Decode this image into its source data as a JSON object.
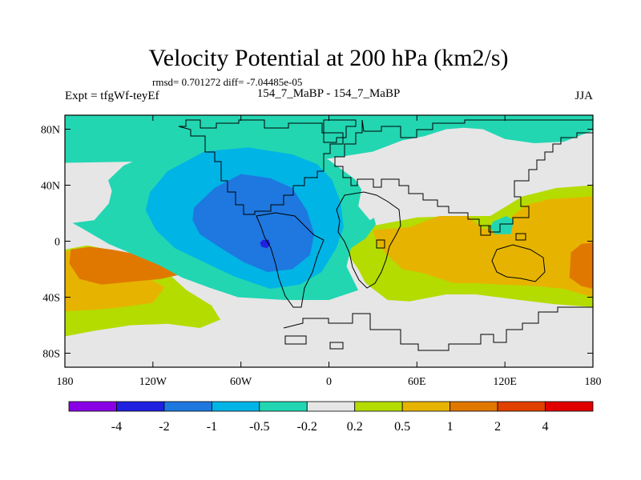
{
  "chart_data": {
    "type": "heatmap",
    "title": "Velocity Potential at 200 hPa (km2/s)",
    "subtitle": "rmsd= 0.701272 diff= -7.04485e-05",
    "left_label": "Expt = tfgWf-teyEf",
    "center_label": "154_7_MaBP - 154_7_MaBP",
    "right_label": "JJA",
    "xlim": [
      -180,
      180
    ],
    "ylim": [
      -90,
      90
    ],
    "x_ticks": [
      {
        "value": -180,
        "label": "180"
      },
      {
        "value": -120,
        "label": "120W"
      },
      {
        "value": -60,
        "label": "60W"
      },
      {
        "value": 0,
        "label": "0"
      },
      {
        "value": 60,
        "label": "60E"
      },
      {
        "value": 120,
        "label": "120E"
      },
      {
        "value": 180,
        "label": "180"
      }
    ],
    "y_ticks": [
      {
        "value": 80,
        "label": "80N"
      },
      {
        "value": 40,
        "label": "40N"
      },
      {
        "value": 0,
        "label": "0"
      },
      {
        "value": -40,
        "label": "40S"
      },
      {
        "value": -80,
        "label": "80S"
      }
    ],
    "contour_levels": [
      -4,
      -2,
      -1,
      -0.5,
      -0.2,
      0.2,
      0.5,
      1,
      2,
      4
    ],
    "colorbar_labels": [
      "-4",
      "-2",
      "-1",
      "-0.5",
      "-0.2",
      "0.2",
      "0.5",
      "1",
      "2",
      "4"
    ],
    "colorbar_colors": [
      "#8a00e6",
      "#2020e0",
      "#1e78e0",
      "#00b4e6",
      "#22d6b2",
      "#e6e6e6",
      "#b4dc00",
      "#e6b400",
      "#e07800",
      "#e04000",
      "#e00000"
    ],
    "regions": [
      {
        "name": "southern-gray",
        "level": "-0.2 to 0.2",
        "polygon": [
          [
            -127,
            -26
          ],
          [
            -105,
            -31
          ],
          [
            -83,
            -36
          ],
          [
            -68,
            -40
          ],
          [
            -60,
            -48
          ],
          [
            -55,
            -58
          ],
          [
            -57,
            -66
          ],
          [
            -45,
            -70
          ],
          [
            -10,
            -69
          ],
          [
            20,
            -62
          ],
          [
            40,
            -53
          ],
          [
            55,
            -44
          ],
          [
            80,
            -39
          ],
          [
            100,
            -39
          ],
          [
            130,
            -43
          ],
          [
            154,
            -46
          ],
          [
            180,
            -47
          ],
          [
            180,
            -90
          ],
          [
            -180,
            -90
          ],
          [
            -180,
            -70
          ],
          [
            -160,
            -68
          ],
          [
            -135,
            -63
          ],
          [
            -110,
            -62
          ],
          [
            -90,
            -63
          ],
          [
            -75,
            -60
          ],
          [
            -70,
            -56
          ],
          [
            -83,
            -50
          ],
          [
            -100,
            -42
          ],
          [
            -113,
            -35
          ],
          [
            -124,
            -29
          ]
        ]
      },
      {
        "name": "south-pacific-yellow",
        "level": "0.2 to 0.5",
        "polygon": [
          [
            -180,
            -6
          ],
          [
            -165,
            -3
          ],
          [
            -140,
            -8
          ],
          [
            -115,
            -18
          ],
          [
            -97,
            -35
          ],
          [
            -80,
            -46
          ],
          [
            -74,
            -56
          ],
          [
            -88,
            -62
          ],
          [
            -110,
            -59
          ],
          [
            -135,
            -60
          ],
          [
            -160,
            -64
          ],
          [
            -180,
            -68
          ]
        ]
      },
      {
        "name": "south-pacific-orange",
        "level": "0.5 to 1",
        "polygon": [
          [
            -180,
            -7
          ],
          [
            -165,
            -6
          ],
          [
            -150,
            -11
          ],
          [
            -130,
            -22
          ],
          [
            -112,
            -33
          ],
          [
            -120,
            -44
          ],
          [
            -140,
            -47
          ],
          [
            -160,
            -49
          ],
          [
            -180,
            -50
          ]
        ]
      },
      {
        "name": "south-pacific-dark-orange",
        "level": "1 to 2",
        "polygon": [
          [
            -176,
            -6
          ],
          [
            -163,
            -4
          ],
          [
            -148,
            -6
          ],
          [
            -127,
            -10
          ],
          [
            -108,
            -18
          ],
          [
            -102,
            -24
          ],
          [
            -115,
            -27
          ],
          [
            -135,
            -29
          ],
          [
            -155,
            -31
          ],
          [
            -170,
            -27
          ],
          [
            -177,
            -16
          ]
        ]
      },
      {
        "name": "afro-asian-yellow",
        "level": "0.2 to 0.5",
        "polygon": [
          [
            15,
            3
          ],
          [
            25,
            10
          ],
          [
            40,
            13
          ],
          [
            60,
            17
          ],
          [
            90,
            18
          ],
          [
            110,
            18
          ],
          [
            132,
            32
          ],
          [
            155,
            38
          ],
          [
            180,
            40
          ],
          [
            180,
            -47
          ],
          [
            154,
            -45
          ],
          [
            130,
            -42
          ],
          [
            100,
            -38
          ],
          [
            80,
            -38
          ],
          [
            55,
            -43
          ],
          [
            40,
            -42
          ],
          [
            25,
            -30
          ],
          [
            20,
            -20
          ],
          [
            12,
            -8
          ],
          [
            10,
            -2
          ]
        ]
      },
      {
        "name": "asian-orange",
        "level": "0.5 to 1",
        "polygon": [
          [
            30,
            8
          ],
          [
            55,
            10
          ],
          [
            75,
            18
          ],
          [
            95,
            18
          ],
          [
            105,
            9
          ],
          [
            120,
            7
          ],
          [
            125,
            18
          ],
          [
            135,
            26
          ],
          [
            150,
            30
          ],
          [
            180,
            32
          ],
          [
            180,
            -40
          ],
          [
            160,
            -34
          ],
          [
            140,
            -32
          ],
          [
            118,
            -31
          ],
          [
            100,
            -30
          ],
          [
            85,
            -30
          ],
          [
            65,
            -23
          ],
          [
            50,
            -20
          ],
          [
            40,
            -10
          ],
          [
            33,
            -2
          ]
        ]
      },
      {
        "name": "west-pacific-dark-orange",
        "level": "1 to 2",
        "polygon": [
          [
            165,
            -8
          ],
          [
            172,
            -2
          ],
          [
            180,
            -1
          ],
          [
            180,
            -34
          ],
          [
            172,
            -32
          ],
          [
            164,
            -26
          ]
        ]
      },
      {
        "name": "central-asia-cyan",
        "level": "-0.5 to -0.2",
        "polygon": [
          [
            112,
            14
          ],
          [
            121,
            18
          ],
          [
            126,
            15
          ],
          [
            124,
            5
          ],
          [
            113,
            5
          ],
          [
            110,
            10
          ]
        ]
      },
      {
        "name": "atlantic-cyan-band",
        "level": "-0.5 to -0.2",
        "polygon": [
          [
            -160,
            34
          ],
          [
            -140,
            54
          ],
          [
            -100,
            72
          ],
          [
            -60,
            76
          ],
          [
            -20,
            70
          ],
          [
            0,
            58
          ],
          [
            18,
            44
          ],
          [
            28,
            27
          ],
          [
            32,
            12
          ],
          [
            25,
            2
          ],
          [
            15,
            -5
          ],
          [
            12,
            -18
          ],
          [
            20,
            -35
          ],
          [
            0,
            -42
          ],
          [
            -30,
            -42
          ],
          [
            -62,
            -40
          ],
          [
            -82,
            -33
          ],
          [
            -100,
            -26
          ],
          [
            -116,
            -17
          ],
          [
            -132,
            -10
          ],
          [
            -150,
            -2
          ],
          [
            -168,
            9
          ],
          [
            -180,
            16
          ],
          [
            -180,
            32
          ]
        ]
      },
      {
        "name": "arctic-cyan",
        "level": "-0.5 to -0.2",
        "polygon": [
          [
            -180,
            90
          ],
          [
            180,
            90
          ],
          [
            180,
            72
          ],
          [
            155,
            64
          ],
          [
            120,
            72
          ],
          [
            105,
            80
          ],
          [
            92,
            81
          ],
          [
            80,
            80
          ],
          [
            65,
            75
          ],
          [
            50,
            72
          ],
          [
            30,
            64
          ],
          [
            0,
            59
          ],
          [
            -180,
            56
          ]
        ]
      },
      {
        "name": "pacific-north-gray",
        "level": "-0.2 to 0.2",
        "polygon": [
          [
            -180,
            56
          ],
          [
            -165,
            56
          ],
          [
            -152,
            48
          ],
          [
            -148,
            36
          ],
          [
            -150,
            27
          ],
          [
            -160,
            15
          ],
          [
            -175,
            13
          ],
          [
            -180,
            14
          ]
        ]
      },
      {
        "name": "asian-gray",
        "level": "-0.2 to 0.2",
        "polygon": [
          [
            28,
            15
          ],
          [
            45,
            26
          ],
          [
            60,
            33
          ],
          [
            75,
            37
          ],
          [
            100,
            39
          ],
          [
            128,
            44
          ],
          [
            155,
            52
          ],
          [
            180,
            56
          ],
          [
            180,
            79
          ],
          [
            160,
            71
          ],
          [
            140,
            70
          ],
          [
            120,
            73
          ],
          [
            105,
            80
          ],
          [
            80,
            79
          ],
          [
            70,
            74
          ],
          [
            55,
            68
          ],
          [
            40,
            61
          ],
          [
            30,
            50
          ],
          [
            22,
            36
          ],
          [
            20,
            25
          ]
        ]
      },
      {
        "name": "tropical-light-blue",
        "level": "-1 to -0.5",
        "polygon": [
          [
            -122,
            35
          ],
          [
            -110,
            50
          ],
          [
            -85,
            64
          ],
          [
            -55,
            67
          ],
          [
            -25,
            62
          ],
          [
            -8,
            55
          ],
          [
            2,
            44
          ],
          [
            8,
            28
          ],
          [
            10,
            10
          ],
          [
            5,
            -5
          ],
          [
            -5,
            -22
          ],
          [
            -20,
            -31
          ],
          [
            -40,
            -34
          ],
          [
            -65,
            -25
          ],
          [
            -85,
            -15
          ],
          [
            -105,
            -5
          ],
          [
            -118,
            8
          ],
          [
            -125,
            22
          ]
        ]
      },
      {
        "name": "tropical-blue",
        "level": "-2 to -1",
        "polygon": [
          [
            -92,
            24
          ],
          [
            -78,
            38
          ],
          [
            -60,
            48
          ],
          [
            -40,
            45
          ],
          [
            -25,
            38
          ],
          [
            -15,
            22
          ],
          [
            -10,
            5
          ],
          [
            -13,
            -10
          ],
          [
            -25,
            -20
          ],
          [
            -42,
            -22
          ],
          [
            -58,
            -15
          ],
          [
            -72,
            -6
          ],
          [
            -88,
            5
          ],
          [
            -93,
            15
          ]
        ]
      },
      {
        "name": "tropical-dark-blue",
        "level": "-4 to -2",
        "polygon": [
          [
            -45,
            1
          ],
          [
            -41,
            1
          ],
          [
            -40,
            -2
          ],
          [
            -42,
            -5
          ],
          [
            -46,
            -4
          ],
          [
            -47,
            -1
          ]
        ]
      }
    ]
  }
}
